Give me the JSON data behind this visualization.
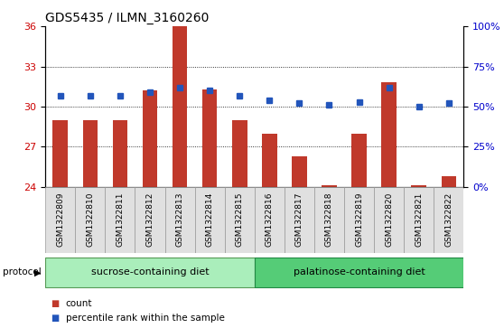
{
  "title": "GDS5435 / ILMN_3160260",
  "samples": [
    "GSM1322809",
    "GSM1322810",
    "GSM1322811",
    "GSM1322812",
    "GSM1322813",
    "GSM1322814",
    "GSM1322815",
    "GSM1322816",
    "GSM1322817",
    "GSM1322818",
    "GSM1322819",
    "GSM1322820",
    "GSM1322821",
    "GSM1322822"
  ],
  "count_values": [
    29.0,
    29.0,
    29.0,
    31.2,
    36.0,
    31.3,
    29.0,
    28.0,
    26.3,
    24.1,
    28.0,
    31.8,
    24.1,
    24.8
  ],
  "percentile_values": [
    57,
    57,
    57,
    59,
    62,
    60,
    57,
    54,
    52,
    51,
    53,
    62,
    50,
    52
  ],
  "ylim_left": [
    24,
    36
  ],
  "ylim_right": [
    0,
    100
  ],
  "yticks_left": [
    24,
    27,
    30,
    33,
    36
  ],
  "yticks_right": [
    0,
    25,
    50,
    75,
    100
  ],
  "ytick_labels_right": [
    "0%",
    "25%",
    "50%",
    "75%",
    "100%"
  ],
  "bar_color": "#C0392B",
  "dot_color": "#2255BB",
  "bg_color": "#FFFFFF",
  "group1_label": "sucrose-containing diet",
  "group2_label": "palatinose-containing diet",
  "group1_count": 7,
  "group2_count": 7,
  "group1_color": "#AAEEBB",
  "group2_color": "#55CC77",
  "protocol_label": "protocol",
  "legend_count_label": "count",
  "legend_percentile_label": "percentile rank within the sample",
  "left_tick_color": "#CC0000",
  "right_tick_color": "#0000CC",
  "title_fontsize": 10,
  "tick_fontsize": 8,
  "sample_fontsize": 6.5,
  "label_fontsize": 8
}
